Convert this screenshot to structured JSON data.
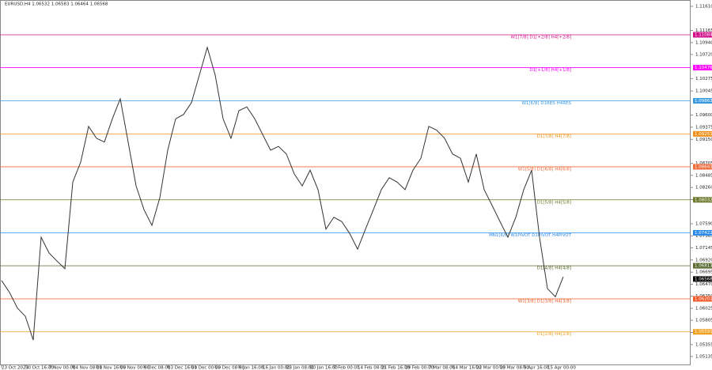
{
  "chart_data": {
    "type": "line",
    "title": "EURUSD,H4 1.06532 1.06583 1.06464 1.06568",
    "color": "#333333",
    "categories": [
      "23 Oct 2023",
      null,
      null,
      "30 Oct 16:00",
      null,
      null,
      "7 Nov 00:00",
      null,
      null,
      "14 Nov 08:00",
      null,
      null,
      "21 Nov 16:00",
      null,
      null,
      "29 Nov 00:00",
      null,
      null,
      "6 Dec 08:00",
      null,
      null,
      "13 Dec 16:00",
      null,
      null,
      "21 Dec 00:00",
      null,
      null,
      "29 Dec 08:00",
      null,
      null,
      "8 Jan 16:00",
      null,
      null,
      "16 Jan 00:00",
      null,
      null,
      "23 Jan 08:00",
      null,
      null,
      "30 Jan 16:00",
      null,
      null,
      "7 Feb 00:00",
      null,
      null,
      "14 Feb 08:00",
      null,
      null,
      "21 Feb 16:00",
      null,
      null,
      "29 Feb 00:00",
      null,
      null,
      "7 Mar 08:00",
      null,
      null,
      "14 Mar 16:00",
      null,
      null,
      "22 Mar 00:00",
      null,
      null,
      "29 Mar 08:00",
      null,
      null,
      "5 Apr 16:00",
      null,
      null,
      "15 Apr 00:00",
      null,
      null
    ],
    "values": [
      1.0654,
      1.0632,
      1.0603,
      1.0588,
      1.0544,
      1.0734,
      1.0705,
      1.069,
      1.0676,
      1.0836,
      1.0873,
      1.0939,
      1.0917,
      1.091,
      1.0953,
      1.099,
      1.091,
      1.0829,
      1.0785,
      1.0756,
      1.0807,
      1.0895,
      1.0953,
      1.0961,
      1.0983,
      1.1034,
      1.1085,
      1.1034,
      1.0953,
      1.0917,
      1.0968,
      1.0975,
      1.0953,
      1.0924,
      1.0895,
      1.0902,
      1.0888,
      1.0851,
      1.0829,
      1.0858,
      1.0822,
      1.0749,
      1.0771,
      1.0763,
      1.0741,
      1.0712,
      1.0749,
      1.0785,
      1.0822,
      1.0844,
      1.0836,
      1.0822,
      1.0858,
      1.088,
      1.0939,
      1.0932,
      1.0917,
      1.0888,
      1.088,
      1.0836,
      1.0888,
      1.0822,
      1.0793,
      1.0763,
      1.0734,
      1.0771,
      1.0822,
      1.0858,
      1.0734,
      1.0639,
      1.0624,
      1.0661
    ],
    "ylim": [
      1.04973,
      1.11727
    ],
    "yticks": [
      {
        "value": 1.1161,
        "label": "1.11610"
      },
      1.11165,
      {
        "value": 1.1094,
        "label": "1.10940"
      },
      {
        "value": 1.1072,
        "label": "1.10720"
      },
      1.10275,
      1.10045,
      {
        "value": 1.096,
        "label": "1.09600"
      },
      1.09375,
      {
        "value": 1.0915,
        "label": "1.09150"
      },
      1.08705,
      1.08485,
      {
        "value": 1.0826,
        "label": "1.08260"
      },
      1.08035,
      {
        "value": 1.0759,
        "label": "1.07590"
      },
      1.07365,
      1.07145,
      {
        "value": 1.0692,
        "label": "1.06920"
      },
      1.06695,
      {
        "value": 1.0647,
        "label": "1.06470"
      },
      {
        "value": 1.0625,
        "label": "1.06250"
      },
      1.06025,
      1.05805,
      {
        "value": 1.0558,
        "label": "1.05580"
      },
      1.05355,
      1.05135
    ],
    "levels": [
      {
        "label": "W1[7/8] D1[+2/8] H4[+2/8]",
        "value": 1.11084,
        "color": "#d0108a"
      },
      {
        "label": "D1[+1/8] H4[+1/8]",
        "value": 1.10476,
        "color": "#ff00ff"
      },
      {
        "label": "W1[6/8] D1RES H4RES",
        "value": 1.09863,
        "color": "#3a9ae0"
      },
      {
        "label": "D1[7/8] H4[7/8]",
        "value": 1.09251,
        "color": "#f0901a"
      },
      {
        "label": "W1[5/8] D1[6/8] H4[6/8]",
        "value": 1.08643,
        "color": "#f06a3a"
      },
      {
        "label": "D1[5/8] H4[5/8]",
        "value": 1.08032,
        "color": "#6b7a2a"
      },
      {
        "label": "MN1[6/8] W1PIVOT D1PIVOT H4PIVOT",
        "value": 1.07422,
        "color": "#2a8ae8"
      },
      {
        "label": "D1[4/8] H4[4/8]",
        "value": 1.06813,
        "color": "#5a6a30"
      },
      {
        "label": "W1[3/8] D1[3/8] H4[3/8]",
        "value": 1.06201,
        "color": "#f05a2a"
      },
      {
        "label": "D1[2/8] H4[2/8]",
        "value": 1.05591,
        "color": "#f0a020"
      }
    ],
    "current_price": 1.06568
  }
}
